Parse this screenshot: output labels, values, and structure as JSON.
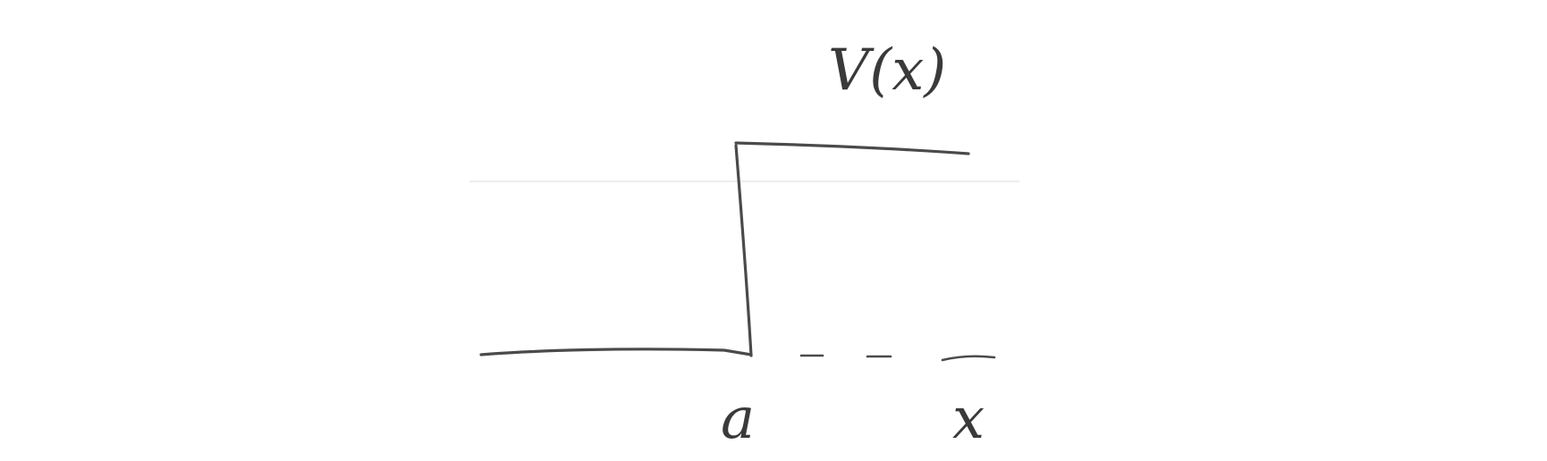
{
  "diagram": {
    "labels": {
      "function_label": "V(x)",
      "step_position_label": "a",
      "axis_label": "x"
    },
    "colors": {
      "ink": "#4a4a4a",
      "faint_guide": "#eeeeee",
      "background": "#ffffff"
    }
  }
}
